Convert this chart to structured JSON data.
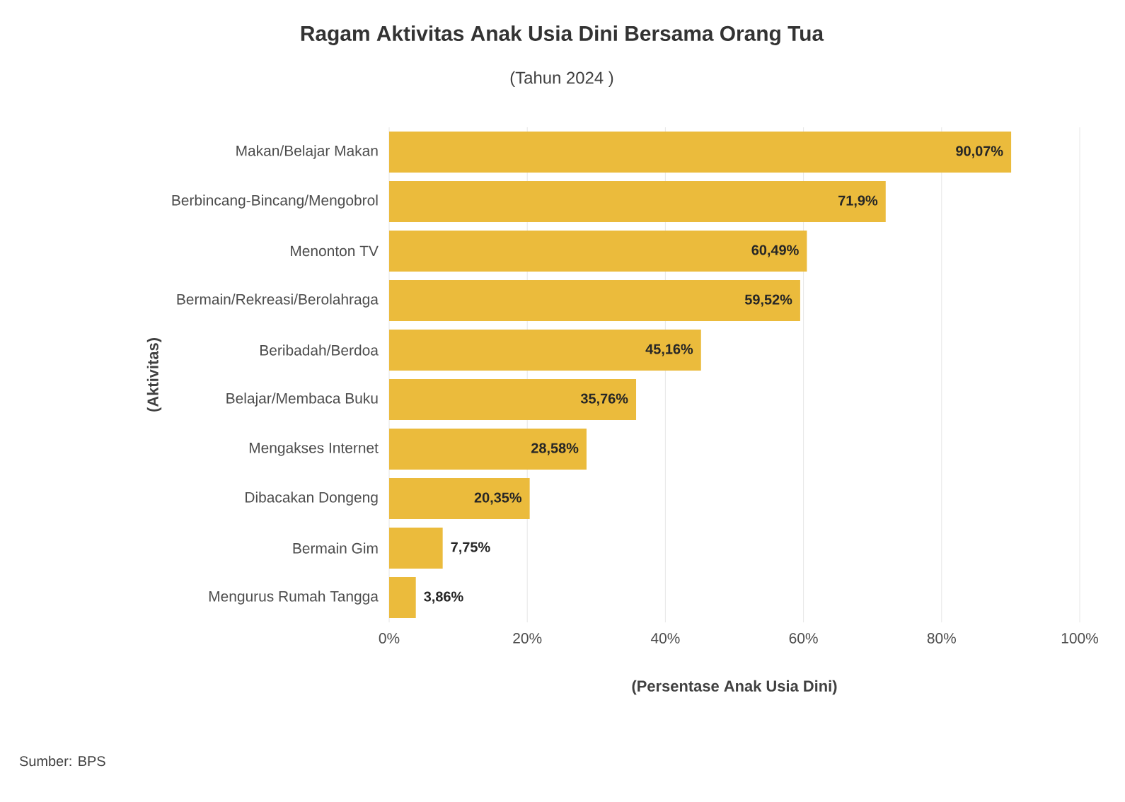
{
  "chart_data": {
    "type": "bar",
    "orientation": "horizontal",
    "title": "Ragam Aktivitas Anak Usia Dini Bersama Orang Tua",
    "subtitle": "(Tahun 2024 )",
    "xlabel": "(Persentase Anak Usia Dini)",
    "ylabel": "(Aktivitas)",
    "categories": [
      "Makan/Belajar Makan",
      "Berbincang-Bincang/Mengobrol",
      "Menonton TV",
      "Bermain/Rekreasi/Berolahraga",
      "Beribadah/Berdoa",
      "Belajar/Membaca Buku",
      "Mengakses Internet",
      "Dibacakan Dongeng",
      "Bermain Gim",
      "Mengurus Rumah Tangga"
    ],
    "values": [
      90.07,
      71.9,
      60.49,
      59.52,
      45.16,
      35.76,
      28.58,
      20.35,
      7.75,
      3.86
    ],
    "value_labels": [
      "90,07%",
      "71,9%",
      "60,49%",
      "59,52%",
      "45,16%",
      "35,76%",
      "28,58%",
      "20,35%",
      "7,75%",
      "3,86%"
    ],
    "color": "#ebbb3c",
    "xlim": [
      0,
      100
    ],
    "xticks": [
      {
        "value": 0,
        "label": "0%"
      },
      {
        "value": 20,
        "label": "20%"
      },
      {
        "value": 40,
        "label": "40%"
      },
      {
        "value": 60,
        "label": "60%"
      },
      {
        "value": 80,
        "label": "80%"
      },
      {
        "value": 100,
        "label": "100%"
      }
    ],
    "grid": "x",
    "annotations": [
      "Sumber: BPS"
    ]
  }
}
